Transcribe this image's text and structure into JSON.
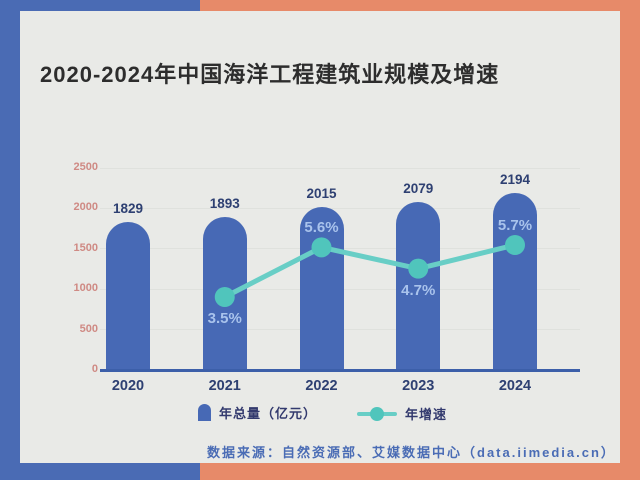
{
  "page": {
    "title": "2020-2024年中国海洋工程建筑业规模及增速",
    "source_note": "数据来源：自然资源部、艾媒数据中心（data.iimedia.cn）"
  },
  "legend": {
    "bar_label": "年总量（亿元）",
    "line_label": "年增速"
  },
  "colors": {
    "background_left": "#4a6bb4",
    "background_right": "#e78a69",
    "card": "#e9eae7",
    "bar": "#4769b5",
    "line": "#68cec6",
    "marker": "#50c5bc",
    "axis_tick_text": "#cf8a84",
    "value_label_text": "#2e4072",
    "percent_label_text": "#a9c3ec",
    "axis_line": "#3c5fa9",
    "title_text": "#2d2d2d",
    "source_text": "#4a6cb5"
  },
  "chart_data": {
    "type": "bar",
    "title": "2020-2024年中国海洋工程建筑业规模及增速",
    "categories": [
      "2020",
      "2021",
      "2022",
      "2023",
      "2024"
    ],
    "series": [
      {
        "name": "年总量（亿元）",
        "type": "bar",
        "values": [
          1829,
          1893,
          2015,
          2079,
          2194
        ]
      },
      {
        "name": "年增速",
        "type": "line",
        "unit": "%",
        "values": [
          null,
          3.5,
          5.6,
          4.7,
          5.7
        ]
      }
    ],
    "yticks": [
      0,
      500,
      1000,
      1500,
      2000,
      2500
    ],
    "ylim": [
      0,
      2500
    ],
    "grid": true,
    "legend_position": "bottom",
    "layout": {
      "pct_label_positions": [
        null,
        "below",
        "above",
        "below",
        "above"
      ]
    }
  }
}
